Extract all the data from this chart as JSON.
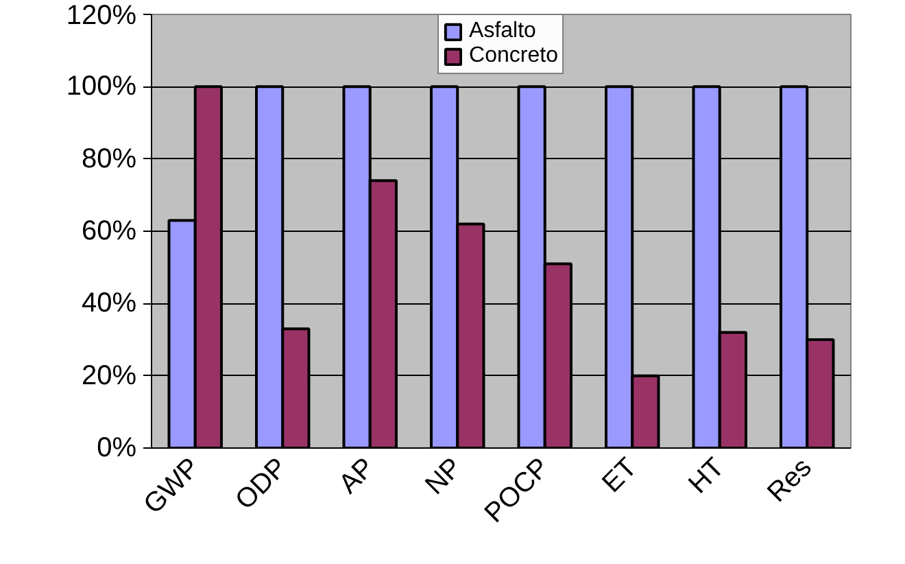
{
  "chart_data": {
    "type": "bar",
    "categories": [
      "GWP",
      "ODP",
      "AP",
      "NP",
      "POCP",
      "ET",
      "HT",
      "Res"
    ],
    "series": [
      {
        "name": "Asfalto",
        "color": "#9999ff",
        "values": [
          63,
          100,
          100,
          100,
          100,
          100,
          100,
          100
        ]
      },
      {
        "name": "Concreto",
        "color": "#993366",
        "values": [
          100,
          33,
          74,
          62,
          51,
          20,
          32,
          30
        ]
      }
    ],
    "ylim": [
      0,
      120
    ],
    "yticks": [
      {
        "value": 0,
        "label": "0%"
      },
      {
        "value": 20,
        "label": "20%"
      },
      {
        "value": 40,
        "label": "40%"
      },
      {
        "value": 60,
        "label": "60%"
      },
      {
        "value": 80,
        "label": "80%"
      },
      {
        "value": 100,
        "label": "100%"
      },
      {
        "value": 120,
        "label": "120%"
      }
    ],
    "grid": "y",
    "legend": "top"
  }
}
